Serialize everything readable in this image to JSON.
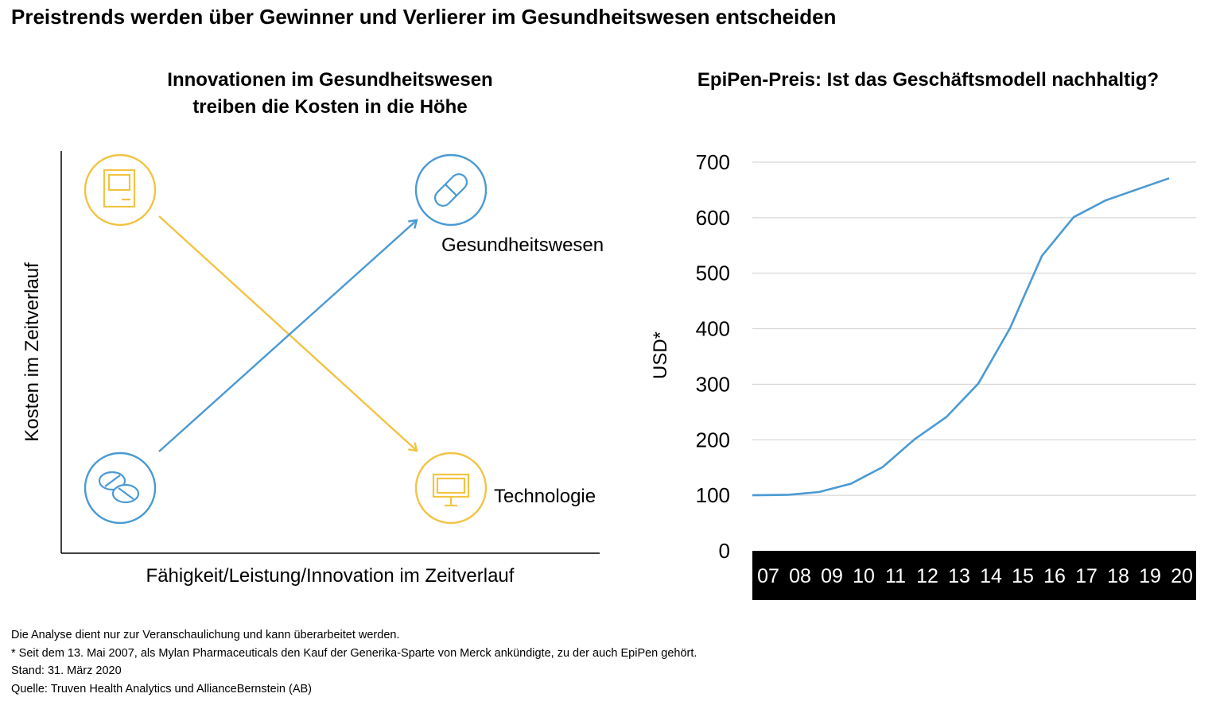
{
  "title": "Preistrends werden über Gewinner und Verlierer im Gesundheitswesen entscheiden",
  "left_panel": {
    "title_line1": "Innovationen im Gesundheitswesen",
    "title_line2": "treiben die Kosten in die Höhe",
    "y_axis_label": "Kosten im Zeitverlauf",
    "x_axis_label": "Fähigkeit/Leistung/Innovation im Zeitverlauf",
    "label_health": "Gesundheitswesen",
    "label_tech": "Technologie",
    "colors": {
      "health": "#4a9ad4",
      "tech": "#f2c443"
    },
    "icons": [
      "computer-icon",
      "capsule-icon",
      "pills-icon",
      "monitor-icon"
    ]
  },
  "right_panel": {
    "title": "EpiPen-Preis: Ist das Geschäftsmodell nachhaltig?"
  },
  "chart_data": {
    "type": "line",
    "title": "EpiPen-Preis: Ist das Geschäftsmodell nachhaltig?",
    "xlabel": "",
    "ylabel": "USD*",
    "x": [
      "07",
      "08",
      "09",
      "10",
      "11",
      "12",
      "13",
      "14",
      "15",
      "16",
      "17",
      "18",
      "19",
      "20"
    ],
    "series": [
      {
        "values": [
          100,
          100.5,
          101,
          106,
          121,
          151,
          201,
          241,
          301,
          401,
          531,
          601,
          631,
          651,
          671
        ],
        "x": [
          0,
          0.6,
          1.15,
          2.1,
          3.1,
          4.1,
          5.1,
          6.1,
          7.1,
          8.1,
          9.1,
          10.1,
          11.1,
          12.1,
          13.1
        ]
      }
    ],
    "ylim": [
      0,
      700
    ],
    "yticks": [
      0,
      100,
      200,
      300,
      400,
      500,
      600,
      700
    ],
    "grid": true,
    "color": "#4a9ad4"
  },
  "footer": {
    "line1": "Die Analyse dient nur zur Veranschaulichung und kann überarbeitet werden.",
    "line2": "* Seit dem 13. Mai 2007, als Mylan Pharmaceuticals den Kauf der Generika-Sparte von Merck ankündigte, zu der auch EpiPen gehört.",
    "line3": "Stand: 31. März 2020",
    "line4": "Quelle: Truven Health Analytics und AllianceBernstein (AB)"
  }
}
